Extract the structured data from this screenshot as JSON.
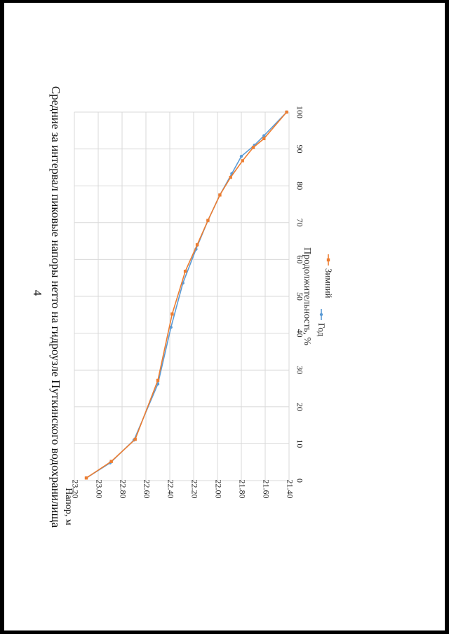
{
  "page": {
    "number": "4"
  },
  "chart_data": {
    "type": "line",
    "title": "Средние за интервал пиковые напоры нетто на гидроузле Путкинского водохранилища",
    "xlabel": "Продолжительность, %",
    "ylabel": "Напор, м",
    "xlim": [
      0,
      100
    ],
    "ylim": [
      21.4,
      23.2
    ],
    "xticks": [
      "0",
      "10",
      "20",
      "30",
      "40",
      "50",
      "60",
      "70",
      "80",
      "90",
      "100"
    ],
    "yticks": [
      "21.40",
      "21.60",
      "21.80",
      "22.00",
      "22.20",
      "22.40",
      "22.60",
      "22.80",
      "23.00",
      "23.20"
    ],
    "grid": true,
    "legend_position": "bottom",
    "colors": {
      "Год": "#5b9bd5",
      "Зимний": "#ed7d31"
    },
    "series": [
      {
        "name": "Год",
        "x": [
          0.7,
          4.8,
          11.0,
          26.2,
          41.6,
          53.6,
          62.8,
          70.6,
          77.5,
          83.3,
          88.0,
          91.0,
          93.6,
          100
        ],
        "y": [
          23.1,
          22.9,
          22.7,
          22.5,
          22.39,
          22.29,
          22.18,
          22.08,
          21.98,
          21.88,
          21.8,
          21.69,
          21.61,
          21.42
        ]
      },
      {
        "name": "Зимний",
        "x": [
          0.7,
          5.2,
          11.2,
          27.2,
          45.2,
          56.8,
          64.0,
          70.6,
          77.5,
          82.3,
          86.8,
          90.4,
          92.8,
          100
        ],
        "y": [
          23.1,
          22.89,
          22.69,
          22.5,
          22.38,
          22.27,
          22.17,
          22.08,
          21.98,
          21.89,
          21.79,
          21.7,
          21.61,
          21.42
        ]
      }
    ]
  }
}
